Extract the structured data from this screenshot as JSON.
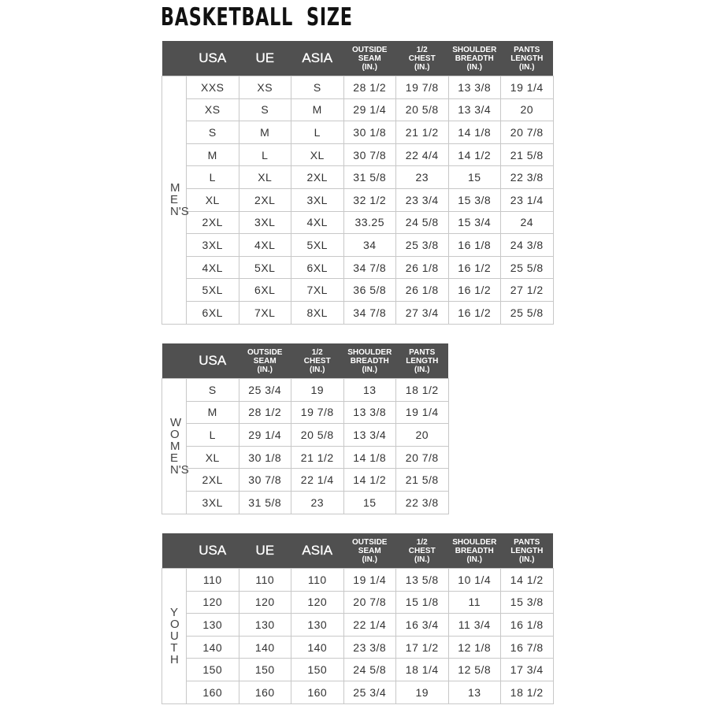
{
  "title": "BASKETBALL  SIZE",
  "colors": {
    "header_bg": "#505050",
    "grid": "#c8c8c8"
  },
  "tables": [
    {
      "section": "MEN'S",
      "headers": [
        "USA",
        "UE",
        "ASIA",
        "OUTSIDE\nSEAM\n(IN.)",
        "1/2\nCHEST\n(IN.)",
        "SHOULDER\nBREADTH\n(IN.)",
        "PANTS\nLENGTH\n(IN.)"
      ],
      "rows": [
        [
          "XXS",
          "XS",
          "S",
          "28 1/2",
          "19 7/8",
          "13 3/8",
          "19 1/4"
        ],
        [
          "XS",
          "S",
          "M",
          "29 1/4",
          "20 5/8",
          "13 3/4",
          "20"
        ],
        [
          "S",
          "M",
          "L",
          "30 1/8",
          "21 1/2",
          "14 1/8",
          "20 7/8"
        ],
        [
          "M",
          "L",
          "XL",
          "30 7/8",
          "22 4/4",
          "14 1/2",
          "21 5/8"
        ],
        [
          "L",
          "XL",
          "2XL",
          "31 5/8",
          "23",
          "15",
          "22 3/8"
        ],
        [
          "XL",
          "2XL",
          "3XL",
          "32 1/2",
          "23 3/4",
          "15 3/8",
          "23 1/4"
        ],
        [
          "2XL",
          "3XL",
          "4XL",
          "33.25",
          "24 5/8",
          "15 3/4",
          "24"
        ],
        [
          "3XL",
          "4XL",
          "5XL",
          "34",
          "25 3/8",
          "16 1/8",
          "24 3/8"
        ],
        [
          "4XL",
          "5XL",
          "6XL",
          "34 7/8",
          "26 1/8",
          "16 1/2",
          "25 5/8"
        ],
        [
          "5XL",
          "6XL",
          "7XL",
          "36 5/8",
          "26 1/8",
          "16 1/2",
          "27 1/2"
        ],
        [
          "6XL",
          "7XL",
          "8XL",
          "34 7/8",
          "27 3/4",
          "16 1/2",
          "25 5/8"
        ]
      ]
    },
    {
      "section": "WOMEN'S",
      "headers": [
        "USA",
        "OUTSIDE\nSEAM\n(IN.)",
        "1/2\nCHEST\n(IN.)",
        "SHOULDER\nBREADTH\n(IN.)",
        "PANTS\nLENGTH\n(IN.)"
      ],
      "rows": [
        [
          "S",
          "25 3/4",
          "19",
          "13",
          "18 1/2"
        ],
        [
          "M",
          "28 1/2",
          "19 7/8",
          "13 3/8",
          "19 1/4"
        ],
        [
          "L",
          "29 1/4",
          "20 5/8",
          "13 3/4",
          "20"
        ],
        [
          "XL",
          "30 1/8",
          "21 1/2",
          "14 1/8",
          "20 7/8"
        ],
        [
          "2XL",
          "30 7/8",
          "22 1/4",
          "14 1/2",
          "21 5/8"
        ],
        [
          "3XL",
          "31 5/8",
          "23",
          "15",
          "22 3/8"
        ]
      ]
    },
    {
      "section": "YOUTH",
      "headers": [
        "USA",
        "UE",
        "ASIA",
        "OUTSIDE\nSEAM\n(IN.)",
        "1/2\nCHEST\n(IN.)",
        "SHOULDER\nBREADTH\n(IN.)",
        "PANTS\nLENGTH\n(IN.)"
      ],
      "rows": [
        [
          "110",
          "110",
          "110",
          "19 1/4",
          "13 5/8",
          "10 1/4",
          "14 1/2"
        ],
        [
          "120",
          "120",
          "120",
          "20 7/8",
          "15 1/8",
          "11",
          "15 3/8"
        ],
        [
          "130",
          "130",
          "130",
          "22 1/4",
          "16 3/4",
          "11 3/4",
          "16 1/8"
        ],
        [
          "140",
          "140",
          "140",
          "23 3/8",
          "17 1/2",
          "12 1/8",
          "16 7/8"
        ],
        [
          "150",
          "150",
          "150",
          "24 5/8",
          "18 1/4",
          "12 5/8",
          "17 3/4"
        ],
        [
          "160",
          "160",
          "160",
          "25 3/4",
          "19",
          "13",
          "18 1/2"
        ]
      ]
    }
  ]
}
